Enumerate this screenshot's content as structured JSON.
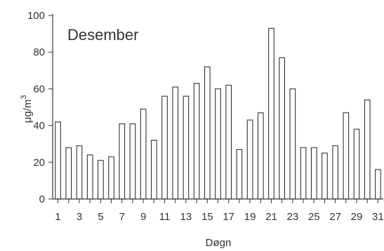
{
  "chart_data": {
    "type": "bar",
    "title": "Desember",
    "xlabel": "Døgn",
    "ylabel": "μg/m",
    "ylabel_superscript": "3",
    "ylim": [
      0,
      100
    ],
    "yticks": [
      0,
      20,
      40,
      60,
      80,
      100
    ],
    "grid": false,
    "categories": [
      1,
      2,
      3,
      4,
      5,
      6,
      7,
      8,
      9,
      10,
      11,
      12,
      13,
      14,
      15,
      16,
      17,
      18,
      19,
      20,
      21,
      22,
      23,
      24,
      25,
      26,
      27,
      28,
      29,
      30,
      31
    ],
    "x_tick_labels": [
      "1",
      "3",
      "5",
      "7",
      "9",
      "11",
      "13",
      "15",
      "17",
      "19",
      "21",
      "23",
      "25",
      "27",
      "29",
      "31"
    ],
    "values": [
      42,
      28,
      29,
      24,
      21,
      23,
      41,
      41,
      49,
      32,
      56,
      61,
      56,
      63,
      72,
      60,
      62,
      27,
      43,
      47,
      93,
      77,
      60,
      28,
      28,
      25,
      29,
      47,
      38,
      54,
      16
    ]
  }
}
